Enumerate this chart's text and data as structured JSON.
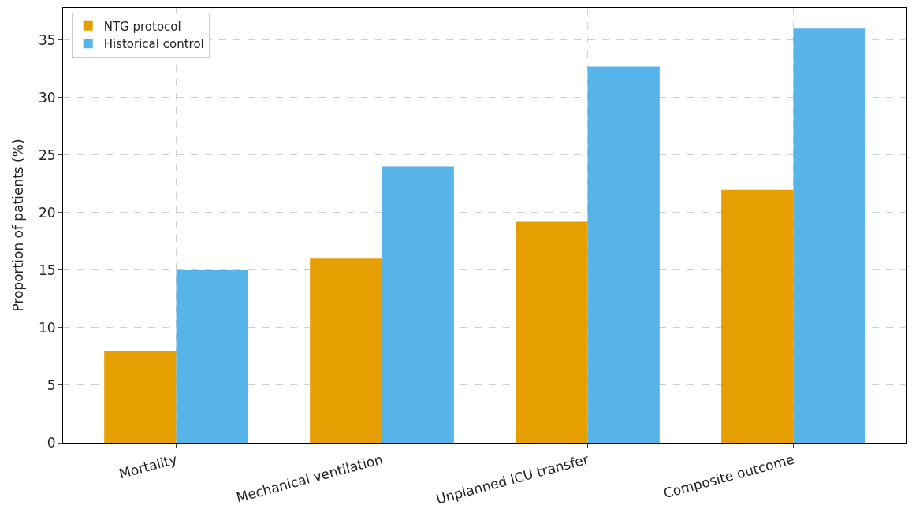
{
  "chart_data": {
    "type": "bar",
    "ylabel": "Proportion of patients (%)",
    "categories": [
      "Mortality",
      "Mechanical ventilation",
      "Unplanned ICU transfer",
      "Composite outcome"
    ],
    "series": [
      {
        "name": "NTG protocol",
        "color": "#e69f00",
        "values": [
          8,
          16,
          19.2,
          22
        ]
      },
      {
        "name": "Historical control",
        "color": "#56b4e9",
        "values": [
          15,
          24,
          32.7,
          36
        ]
      }
    ],
    "ylim": [
      0,
      37.8
    ],
    "yticks": [
      0,
      5,
      10,
      15,
      20,
      25,
      30,
      35
    ],
    "grid": true,
    "legend": "top left"
  }
}
